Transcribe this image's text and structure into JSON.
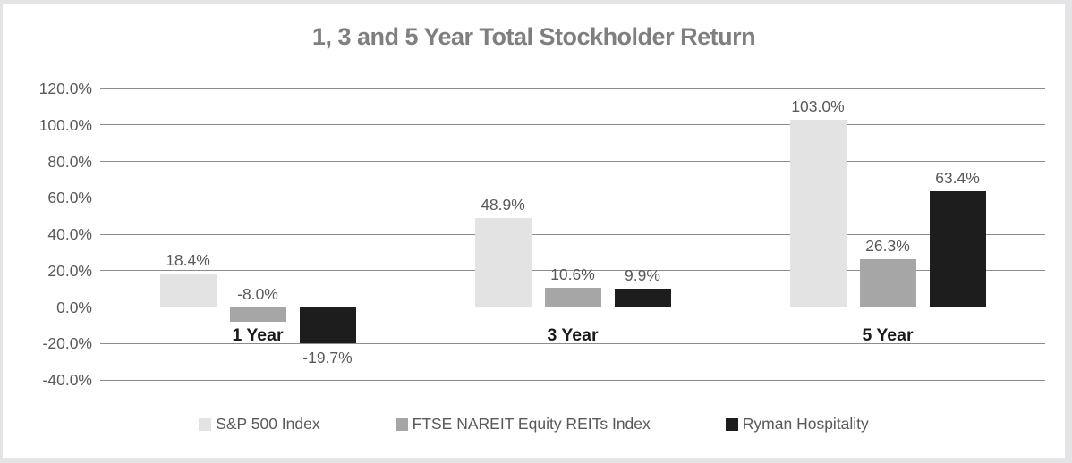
{
  "chart_data": {
    "type": "bar",
    "title": "1, 3 and 5 Year Total Stockholder Return",
    "categories": [
      "1 Year",
      "3 Year",
      "5 Year"
    ],
    "series": [
      {
        "name": "S&P 500 Index",
        "color": "#e3e3e3",
        "values": [
          18.4,
          48.9,
          103.0
        ],
        "labels": [
          "18.4%",
          "48.9%",
          "103.0%"
        ]
      },
      {
        "name": "FTSE NAREIT Equity REITs Index",
        "color": "#a6a6a6",
        "values": [
          -8.0,
          10.6,
          26.3
        ],
        "labels": [
          "-8.0%",
          "10.6%",
          "26.3%"
        ],
        "label_above": [
          true,
          true,
          true
        ]
      },
      {
        "name": "Ryman Hospitality",
        "color": "#1d1d1d",
        "values": [
          -19.7,
          9.9,
          63.4
        ],
        "labels": [
          "-19.7%",
          "9.9%",
          "63.4%"
        ]
      }
    ],
    "y_axis": {
      "min": -40,
      "max": 120,
      "step": 20,
      "tick_labels": [
        "120.0%",
        "100.0%",
        "80.0%",
        "60.0%",
        "40.0%",
        "20.0%",
        "0.0%",
        "-20.0%",
        "-40.0%"
      ]
    },
    "grid": true,
    "legend_position": "bottom",
    "colors": {
      "grid": "#8c8c8c",
      "title": "#7f7f7f",
      "tick_label": "#595959",
      "data_label": "#595959",
      "category_label": "#1a1a1a",
      "frame": "#e4e4e6"
    }
  }
}
